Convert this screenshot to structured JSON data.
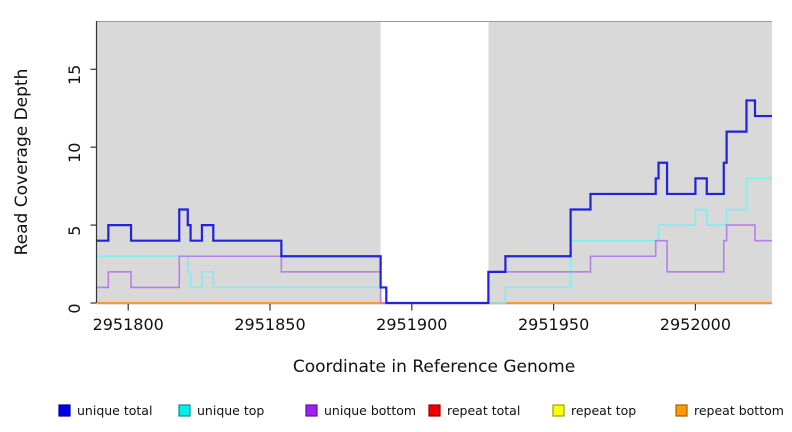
{
  "chart_data": {
    "type": "line",
    "subtype": "step-coverage",
    "title": "",
    "xlabel": "Coordinate in Reference Genome",
    "ylabel": "Read Coverage Depth",
    "xlim": [
      2951789,
      2952027
    ],
    "ylim": [
      0,
      18.1
    ],
    "x_ticks": [
      2951800,
      2951850,
      2951900,
      2951950,
      2952000
    ],
    "y_ticks": [
      0,
      5,
      10,
      15
    ],
    "grid": "off",
    "legend_position": "bottom",
    "plot_background": "#d9d9d9",
    "background_regions": [
      {
        "name": "shaded-region-left",
        "from": 2951789,
        "to": 2951889,
        "color": "#d9d9d9"
      },
      {
        "name": "gap-region",
        "from": 2951889,
        "to": 2951927,
        "color": "#ffffff"
      },
      {
        "name": "shaded-region-right",
        "from": 2951927,
        "to": 2952027,
        "color": "#d9d9d9"
      }
    ],
    "series": [
      {
        "name": "repeat total",
        "color": "#dd0000",
        "width": 1.6,
        "end": 2952027,
        "steps": [
          [
            2951789,
            0
          ]
        ]
      },
      {
        "name": "repeat top",
        "color": "#eeee00",
        "width": 1.6,
        "end": 2952027,
        "steps": [
          [
            2951789,
            0
          ]
        ]
      },
      {
        "name": "repeat bottom",
        "color": "#ff9d2e",
        "width": 1.8,
        "end": 2952027,
        "steps": [
          [
            2951789,
            0
          ]
        ]
      },
      {
        "name": "unique top",
        "color": "#7eeeee",
        "width": 1.6,
        "end": 2952027,
        "steps": [
          [
            2951789,
            3
          ],
          [
            2951821,
            2
          ],
          [
            2951822,
            1
          ],
          [
            2951826,
            2
          ],
          [
            2951830,
            1
          ],
          [
            2951891,
            0
          ],
          [
            2951933,
            1
          ],
          [
            2951956,
            4
          ],
          [
            2951987,
            5
          ],
          [
            2952000,
            6
          ],
          [
            2952004,
            5
          ],
          [
            2952011,
            6
          ],
          [
            2952018,
            8
          ]
        ]
      },
      {
        "name": "unique bottom",
        "color": "#b87fe6",
        "width": 1.6,
        "end": 2952027,
        "steps": [
          [
            2951789,
            1
          ],
          [
            2951793,
            2
          ],
          [
            2951801,
            1
          ],
          [
            2951818,
            3
          ],
          [
            2951854,
            2
          ],
          [
            2951889,
            0
          ],
          [
            2951927,
            2
          ],
          [
            2951963,
            3
          ],
          [
            2951986,
            4
          ],
          [
            2951990,
            2
          ],
          [
            2952010,
            4
          ],
          [
            2952011,
            5
          ],
          [
            2952021,
            4
          ]
        ]
      },
      {
        "name": "unique total",
        "color": "#2222dd",
        "width": 2.2,
        "end": 2952027,
        "steps": [
          [
            2951789,
            4
          ],
          [
            2951793,
            5
          ],
          [
            2951801,
            4
          ],
          [
            2951818,
            6
          ],
          [
            2951821,
            5
          ],
          [
            2951822,
            4
          ],
          [
            2951826,
            5
          ],
          [
            2951830,
            4
          ],
          [
            2951854,
            3
          ],
          [
            2951889,
            1
          ],
          [
            2951891,
            0
          ],
          [
            2951927,
            2
          ],
          [
            2951933,
            3
          ],
          [
            2951956,
            6
          ],
          [
            2951963,
            7
          ],
          [
            2951986,
            8
          ],
          [
            2951987,
            9
          ],
          [
            2951990,
            7
          ],
          [
            2952000,
            8
          ],
          [
            2952004,
            7
          ],
          [
            2952010,
            9
          ],
          [
            2952011,
            11
          ],
          [
            2952018,
            13
          ],
          [
            2952021,
            12
          ]
        ]
      }
    ],
    "legend": [
      {
        "label": "unique total",
        "fill": "#0000ee",
        "border": "#000090"
      },
      {
        "label": "unique top",
        "fill": "#00eeee",
        "border": "#009595"
      },
      {
        "label": "unique bottom",
        "fill": "#a020f0",
        "border": "#661097"
      },
      {
        "label": "repeat total",
        "fill": "#ee0000",
        "border": "#950000"
      },
      {
        "label": "repeat top",
        "fill": "#ffff00",
        "border": "#a0a000"
      },
      {
        "label": "repeat bottom",
        "fill": "#ff9900",
        "border": "#a06200"
      }
    ],
    "axis_color": "#333333",
    "plot_top_edge_color": "#999999"
  }
}
